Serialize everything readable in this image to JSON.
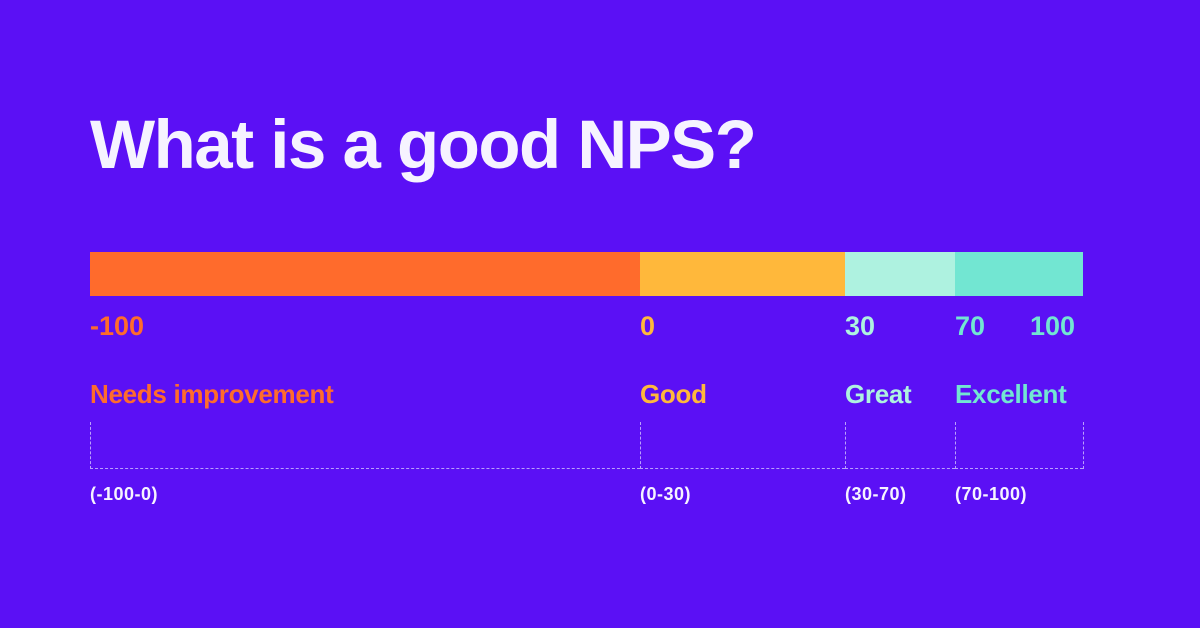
{
  "title": "What is a good NPS?",
  "colors": {
    "background": "#5b10f5",
    "needs_improvement": "#ff6b2c",
    "good": "#ffb83b",
    "great": "#aef2e0",
    "excellent": "#72e6d2",
    "title": "#f6f3ff"
  },
  "scale": {
    "min": -100,
    "max": 100
  },
  "ticks": [
    "-100",
    "0",
    "30",
    "70",
    "100"
  ],
  "segments": [
    {
      "label": "Needs improvement",
      "range": "(-100-0)",
      "from": -100,
      "to": 0
    },
    {
      "label": "Good",
      "range": "(0-30)",
      "from": 0,
      "to": 30
    },
    {
      "label": "Great",
      "range": "(30-70)",
      "from": 30,
      "to": 70
    },
    {
      "label": "Excellent",
      "range": "(70-100)",
      "from": 70,
      "to": 100
    }
  ]
}
